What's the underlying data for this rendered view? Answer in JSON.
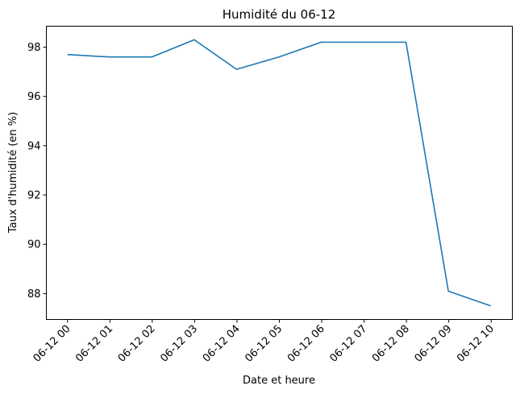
{
  "chart_data": {
    "type": "line",
    "title": "Humidité du 06-12",
    "xlabel": "Date et heure",
    "ylabel": "Taux d'humidité (en %)",
    "categories": [
      "06-12 00",
      "06-12 01",
      "06-12 02",
      "06-12 03",
      "06-12 04",
      "06-12 05",
      "06-12 06",
      "06-12 07",
      "06-12 08",
      "06-12 09",
      "06-12 10"
    ],
    "x_positions": [
      0,
      1,
      2,
      3,
      4,
      5,
      6,
      7,
      8,
      9,
      10
    ],
    "series": [
      {
        "x": [
          0,
          0.99,
          1.99,
          2.99,
          3.99,
          4.99,
          5.99,
          6.99,
          7.99,
          8.99,
          9.99
        ],
        "values": [
          97.7,
          97.6,
          97.6,
          98.3,
          97.1,
          97.6,
          98.2,
          98.2,
          98.2,
          88.1,
          87.5
        ],
        "color": "#1f77b4"
      }
    ],
    "yticks": [
      88,
      90,
      92,
      94,
      96,
      98
    ],
    "ylim": [
      86.95,
      98.85
    ],
    "xlim": [
      -0.5,
      10.5
    ],
    "grid": false,
    "legend": "none"
  }
}
